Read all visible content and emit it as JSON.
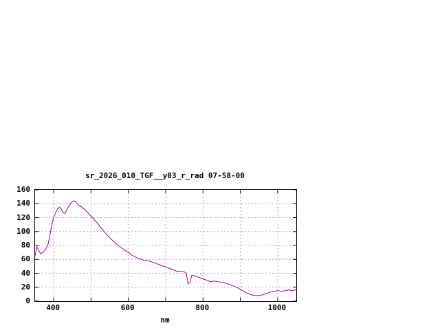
{
  "page": {
    "background": "#ffffff"
  },
  "chart_data": {
    "type": "line",
    "title": "sr_2026_010_TGF__y03_r_rad 07-58-00",
    "xlabel": "nm",
    "ylabel": "",
    "xlim": [
      350,
      1050
    ],
    "ylim": [
      0,
      160
    ],
    "xticks": [
      400,
      600,
      800,
      1000
    ],
    "grid_x": [
      400,
      500,
      600,
      700,
      800,
      900,
      1000
    ],
    "yticks": [
      0,
      20,
      40,
      60,
      80,
      100,
      120,
      140,
      160
    ],
    "grid": true,
    "legend": "none",
    "line_color": "#990099",
    "series": [
      {
        "name": "sr_2026_010_TGF__y03_r_rad",
        "x": [
          350,
          355,
          360,
          365,
          370,
          375,
          380,
          385,
          390,
          395,
          400,
          405,
          410,
          415,
          420,
          425,
          430,
          435,
          440,
          445,
          450,
          455,
          460,
          465,
          470,
          475,
          480,
          485,
          490,
          495,
          500,
          510,
          520,
          530,
          540,
          550,
          560,
          570,
          580,
          590,
          600,
          610,
          620,
          630,
          640,
          650,
          660,
          670,
          680,
          690,
          700,
          710,
          720,
          730,
          740,
          750,
          755,
          760,
          765,
          770,
          780,
          790,
          800,
          810,
          820,
          830,
          840,
          850,
          860,
          870,
          880,
          890,
          900,
          910,
          920,
          930,
          940,
          950,
          960,
          970,
          980,
          990,
          1000,
          1010,
          1020,
          1030,
          1040,
          1050
        ],
        "y": [
          65,
          78,
          73,
          68,
          70,
          72,
          76,
          82,
          95,
          110,
          120,
          127,
          132,
          135,
          133,
          127,
          126,
          131,
          136,
          140,
          143,
          144,
          142,
          139,
          137,
          135,
          133,
          131,
          128,
          125,
          122,
          116,
          110,
          103,
          97,
          91,
          86,
          81,
          77,
          73,
          70,
          66,
          63,
          61,
          59,
          58,
          57,
          55,
          53,
          51,
          49,
          47,
          45,
          43,
          43,
          42,
          40,
          25,
          27,
          37,
          36,
          34,
          32,
          30,
          28,
          29,
          28,
          27,
          26,
          24,
          22,
          20,
          17,
          14,
          11,
          9,
          8,
          8,
          9,
          11,
          13,
          14,
          15,
          14,
          15,
          16,
          15,
          17
        ]
      }
    ]
  }
}
